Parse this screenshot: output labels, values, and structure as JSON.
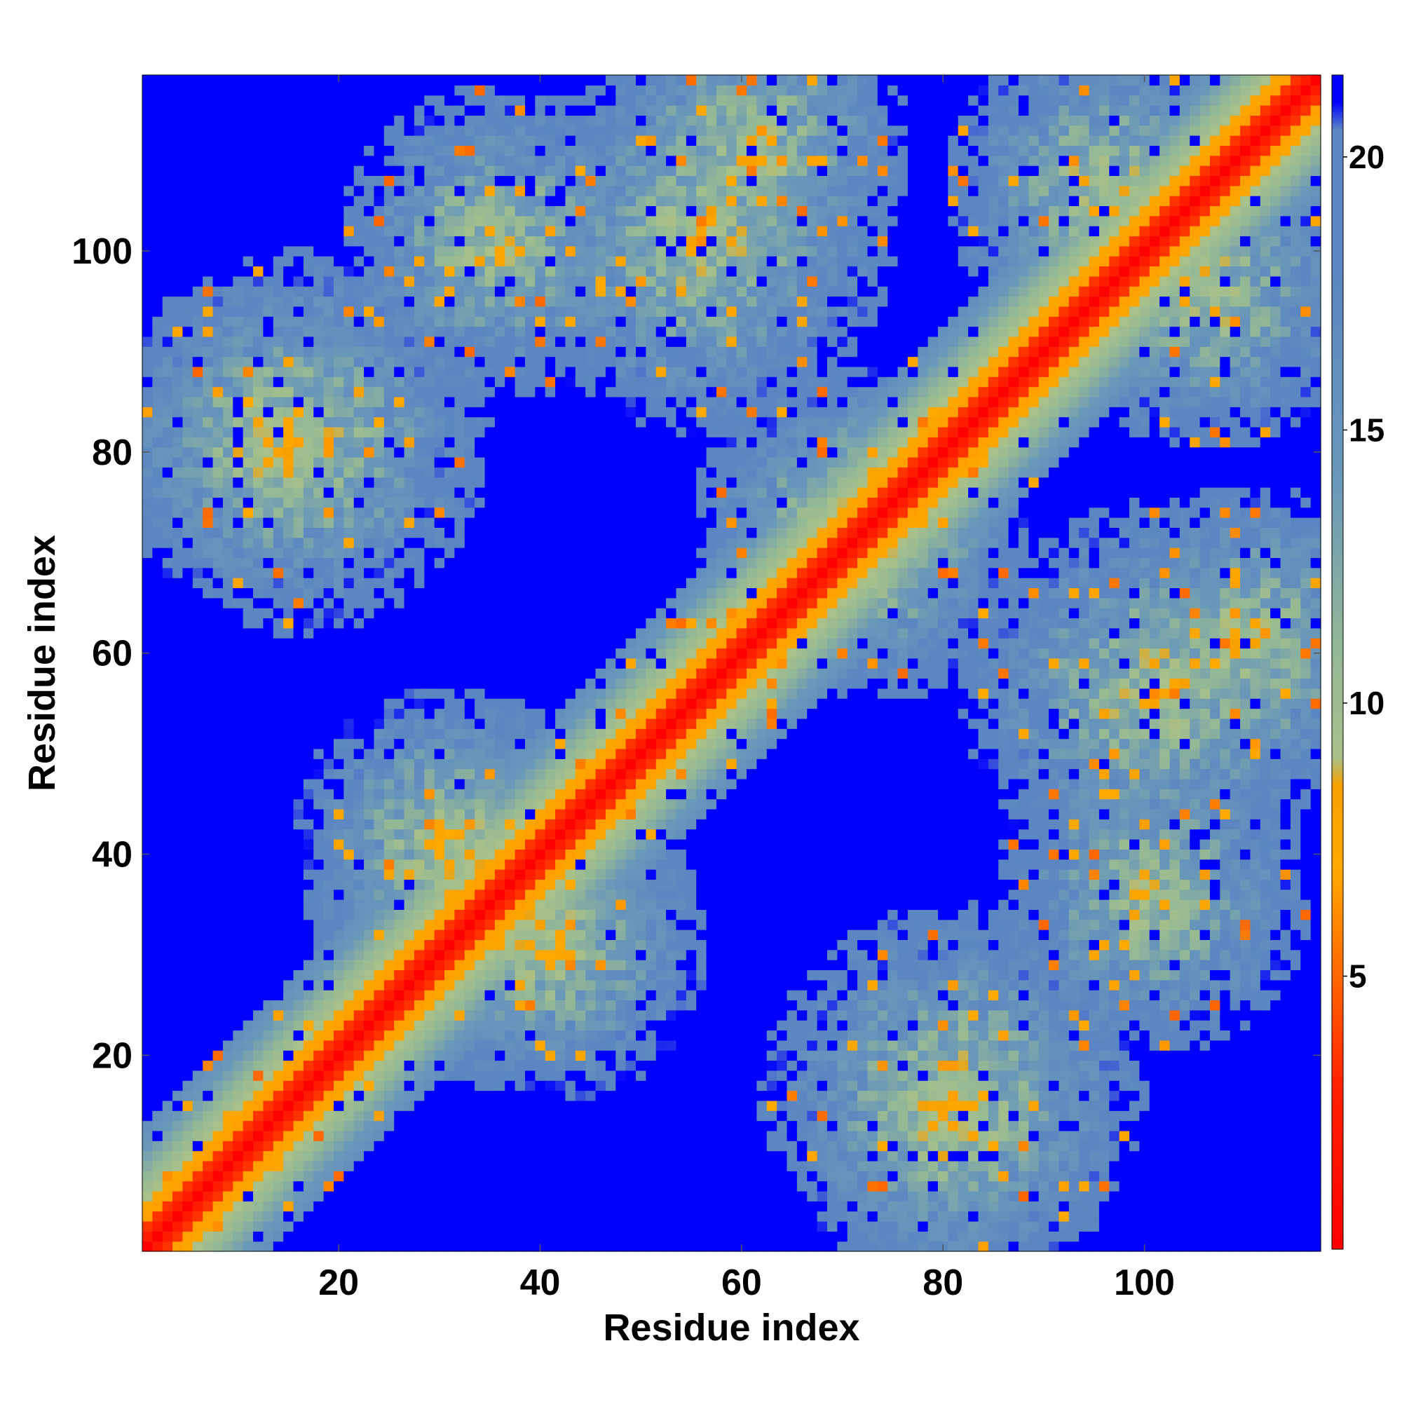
{
  "chart_data": {
    "type": "heatmap",
    "title": "",
    "xlabel": "Residue index",
    "ylabel": "Residue index",
    "xlim": [
      0.5,
      117.5
    ],
    "ylim": [
      0.5,
      117.5
    ],
    "n_residues": 117,
    "x_ticks": [
      20,
      40,
      60,
      80,
      100
    ],
    "y_ticks": [
      20,
      40,
      60,
      80,
      100
    ],
    "colorbar": {
      "ticks": [
        5,
        10,
        15,
        20
      ],
      "range": [
        0,
        21.5
      ],
      "color_stops": [
        {
          "value": 0,
          "color": "#ff0000"
        },
        {
          "value": 3,
          "color": "#ff2200"
        },
        {
          "value": 5,
          "color": "#ff6600"
        },
        {
          "value": 7,
          "color": "#ffaa00"
        },
        {
          "value": 8.5,
          "color": "#f5a000"
        },
        {
          "value": 9,
          "color": "#a8c08a"
        },
        {
          "value": 11,
          "color": "#93b896"
        },
        {
          "value": 14,
          "color": "#6a98b8"
        },
        {
          "value": 18,
          "color": "#5b86c2"
        },
        {
          "value": 20.5,
          "color": "#5b86c2"
        },
        {
          "value": 21,
          "color": "#0000ff"
        },
        {
          "value": 21.5,
          "color": "#0000ff"
        }
      ]
    },
    "matrix_description": "Residue-residue distance map; values > 20 shown as saturated blue",
    "structure": {
      "diagonal_band_halfwidth": 12,
      "contact_lobes": [
        {
          "center": [
            12,
            80
          ],
          "spread": 10
        },
        {
          "center": [
            35,
            35
          ],
          "spread": 12
        },
        {
          "center": [
            55,
            100
          ],
          "spread": 12
        },
        {
          "center": [
            70,
            72
          ],
          "spread": 10
        },
        {
          "center": [
            95,
            105
          ],
          "spread": 10
        },
        {
          "center": [
            80,
            15
          ],
          "spread": 12
        },
        {
          "center": [
            100,
            35
          ],
          "spread": 10
        },
        {
          "center": [
            110,
            60
          ],
          "spread": 10
        },
        {
          "center": [
            30,
            40
          ],
          "spread": 10
        }
      ]
    }
  }
}
